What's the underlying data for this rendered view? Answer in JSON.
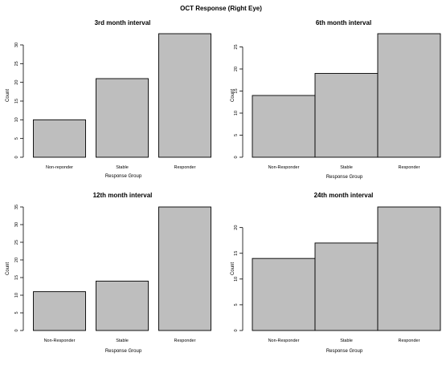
{
  "figure": {
    "title": "OCT Response (Right Eye)"
  },
  "chart_data": [
    {
      "type": "bar",
      "title": "3rd month interval",
      "xlabel": "Response Group",
      "ylabel": "Count",
      "categories": [
        "Non-reponder",
        "Stable",
        "Responder"
      ],
      "values": [
        10,
        21,
        33
      ],
      "ylim": [
        0,
        33
      ],
      "yticks": [
        0,
        5,
        10,
        15,
        20,
        25,
        30
      ],
      "grid": false,
      "bar_color": "#bebebe"
    },
    {
      "type": "bar",
      "title": "6th month interval",
      "xlabel": "Response Group",
      "ylabel": "Count",
      "categories": [
        "Non-Responder",
        "Stable",
        "Responder"
      ],
      "values": [
        14,
        19,
        28
      ],
      "ylim": [
        0,
        28
      ],
      "yticks": [
        0,
        5,
        10,
        15,
        20,
        25
      ],
      "grid": false,
      "bar_color": "#bebebe"
    },
    {
      "type": "bar",
      "title": "12th month interval",
      "xlabel": "Response Group",
      "ylabel": "Count",
      "categories": [
        "Non-Responder",
        "Stable",
        "Responder"
      ],
      "values": [
        11,
        14,
        35
      ],
      "ylim": [
        0,
        35
      ],
      "yticks": [
        0,
        5,
        10,
        15,
        20,
        25,
        30,
        35
      ],
      "grid": false,
      "bar_color": "#bebebe"
    },
    {
      "type": "bar",
      "title": "24th month interval",
      "xlabel": "Response Group",
      "ylabel": "Count",
      "categories": [
        "Non-Responder",
        "Stable",
        "Responder"
      ],
      "values": [
        14,
        17,
        24
      ],
      "ylim": [
        0,
        24
      ],
      "yticks": [
        0,
        5,
        10,
        15,
        20
      ],
      "grid": false,
      "bar_color": "#bebebe"
    }
  ]
}
